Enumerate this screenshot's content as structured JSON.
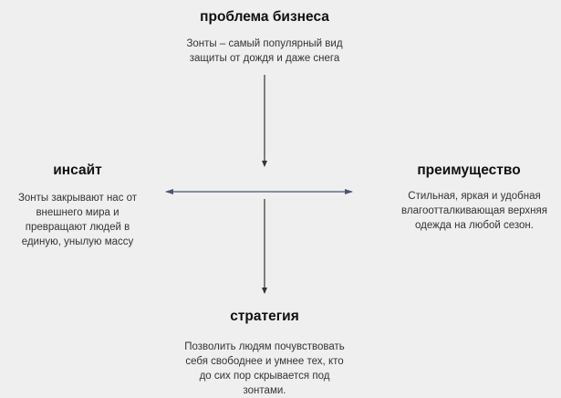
{
  "top": {
    "title": "проблема бизнеса",
    "lines": [
      "Зонты – самый популярный вид",
      "защиты от дождя и даже снега"
    ]
  },
  "left": {
    "title": "инсайт",
    "lines": [
      "Зонты закрывают нас от",
      "внешнего мира и",
      "превращают людей в",
      "единую, унылую массу"
    ]
  },
  "right": {
    "title": "преимущество",
    "lines": [
      "Стильная, яркая и удобная",
      "влагоотталкивающая верхняя",
      "одежда на любой сезон."
    ]
  },
  "bottom": {
    "title": "стратегия",
    "lines": [
      "Позволить людям почувствовать",
      "себя свободнее и умнее тех, кто",
      "до сих пор скрывается под",
      "зонтами."
    ]
  },
  "colors": {
    "vertical_arrow": "#333333",
    "horizontal_arrow": "#4a5570",
    "background": "#efefef"
  }
}
